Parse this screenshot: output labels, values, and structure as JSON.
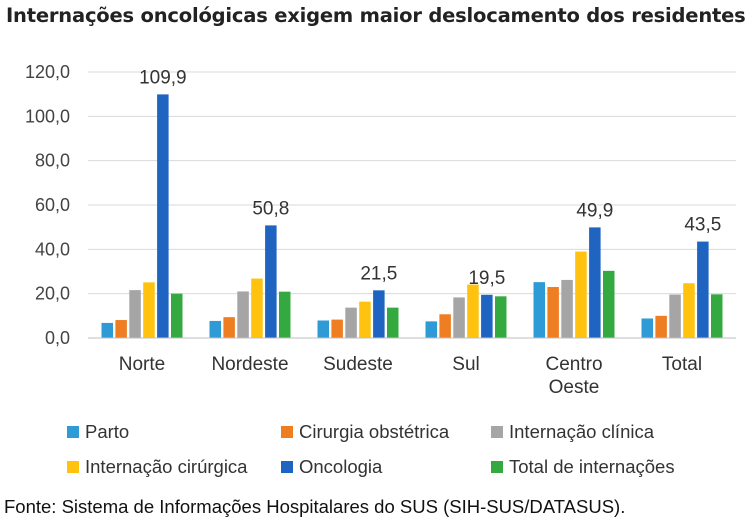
{
  "header": {
    "title": "Internações oncológicas exigem maior deslocamento dos residentes"
  },
  "footer": {
    "source": "Fonte: Sistema de Informações Hospitalares do SUS (SIH-SUS/DATASUS)."
  },
  "chart_data": {
    "type": "bar",
    "title": "Internações oncológicas exigem maior deslocamento dos residentes",
    "categories": [
      [
        "Norte"
      ],
      [
        "Nordeste"
      ],
      [
        "Sudeste"
      ],
      [
        "Sul"
      ],
      [
        "Centro",
        "Oeste"
      ],
      [
        "Total"
      ]
    ],
    "ylim": [
      0,
      120
    ],
    "yticks": [
      "0,0",
      "20,0",
      "40,0",
      "60,0",
      "80,0",
      "100,0",
      "120,0"
    ],
    "grid": true,
    "legend_position": "bottom",
    "series": [
      {
        "name": "Parto",
        "color": "#2e9bd6",
        "values": [
          6.8,
          7.7,
          7.9,
          7.5,
          25.2,
          8.8
        ]
      },
      {
        "name": "Cirurgia obstétrica",
        "color": "#ef7d22",
        "values": [
          8.1,
          9.4,
          8.3,
          10.7,
          23.0,
          10.0
        ]
      },
      {
        "name": "Internação clínica",
        "color": "#a5a5a5",
        "values": [
          21.6,
          21.0,
          13.7,
          18.3,
          26.2,
          19.6
        ]
      },
      {
        "name": "Internação cirúrgica",
        "color": "#ffc20e",
        "values": [
          25.1,
          26.8,
          16.4,
          24.1,
          39.0,
          24.7
        ]
      },
      {
        "name": "Oncologia",
        "color": "#1f64c1",
        "values": [
          109.9,
          50.8,
          21.5,
          19.5,
          49.9,
          43.5
        ],
        "labels": [
          "109,9",
          "50,8",
          "21,5",
          "19,5",
          "49,9",
          "43,5"
        ]
      },
      {
        "name": "Total de internações",
        "color": "#34a93f",
        "values": [
          20.0,
          20.9,
          13.7,
          18.8,
          30.3,
          19.7
        ]
      }
    ]
  }
}
